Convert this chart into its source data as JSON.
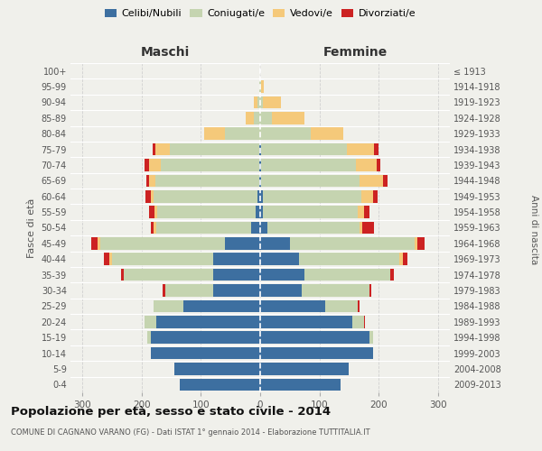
{
  "age_groups": [
    "0-4",
    "5-9",
    "10-14",
    "15-19",
    "20-24",
    "25-29",
    "30-34",
    "35-39",
    "40-44",
    "45-49",
    "50-54",
    "55-59",
    "60-64",
    "65-69",
    "70-74",
    "75-79",
    "80-84",
    "85-89",
    "90-94",
    "95-99",
    "100+"
  ],
  "birth_years": [
    "2009-2013",
    "2004-2008",
    "1999-2003",
    "1994-1998",
    "1989-1993",
    "1984-1988",
    "1979-1983",
    "1974-1978",
    "1969-1973",
    "1964-1968",
    "1959-1963",
    "1954-1958",
    "1949-1953",
    "1944-1948",
    "1939-1943",
    "1934-1938",
    "1929-1933",
    "1924-1928",
    "1919-1923",
    "1914-1918",
    "≤ 1913"
  ],
  "maschi": {
    "celibi": [
      135,
      145,
      185,
      185,
      175,
      130,
      80,
      80,
      80,
      60,
      15,
      8,
      5,
      2,
      2,
      2,
      0,
      0,
      0,
      0,
      0
    ],
    "coniugati": [
      0,
      0,
      0,
      5,
      20,
      50,
      80,
      150,
      170,
      210,
      160,
      165,
      175,
      175,
      165,
      150,
      60,
      10,
      5,
      1,
      0
    ],
    "vedovi": [
      0,
      0,
      0,
      0,
      0,
      0,
      0,
      0,
      5,
      5,
      5,
      5,
      5,
      10,
      20,
      25,
      35,
      15,
      5,
      0,
      0
    ],
    "divorziati": [
      0,
      0,
      0,
      0,
      0,
      0,
      5,
      5,
      8,
      10,
      5,
      10,
      8,
      5,
      8,
      5,
      0,
      0,
      0,
      0,
      0
    ]
  },
  "femmine": {
    "nubili": [
      135,
      150,
      190,
      185,
      155,
      110,
      70,
      75,
      65,
      50,
      12,
      5,
      5,
      2,
      2,
      2,
      0,
      0,
      0,
      0,
      0
    ],
    "coniugate": [
      0,
      0,
      0,
      5,
      20,
      55,
      115,
      145,
      170,
      210,
      155,
      160,
      165,
      165,
      160,
      145,
      85,
      20,
      5,
      1,
      0
    ],
    "vedove": [
      0,
      0,
      0,
      0,
      0,
      0,
      0,
      0,
      5,
      5,
      5,
      10,
      20,
      40,
      35,
      45,
      55,
      55,
      30,
      5,
      0
    ],
    "divorziate": [
      0,
      0,
      0,
      0,
      2,
      2,
      2,
      5,
      8,
      12,
      20,
      10,
      8,
      8,
      5,
      8,
      0,
      0,
      0,
      0,
      0
    ]
  },
  "colors": {
    "celibi": "#3d6fa0",
    "coniugati": "#c5d4b0",
    "vedovi": "#f5c97a",
    "divorziati": "#cc2222"
  },
  "legend_labels": [
    "Celibi/Nubili",
    "Coniugati/e",
    "Vedovi/e",
    "Divorziati/e"
  ],
  "title": "Popolazione per età, sesso e stato civile - 2014",
  "subtitle": "COMUNE DI CAGNANO VARANO (FG) - Dati ISTAT 1° gennaio 2014 - Elaborazione TUTTITALIA.IT",
  "xlabel_left": "Maschi",
  "xlabel_right": "Femmine",
  "ylabel_left": "Fasce di età",
  "ylabel_right": "Anni di nascita",
  "xlim": 320,
  "bg_color": "#f0f0eb",
  "grid_color": "#d0d0d0"
}
